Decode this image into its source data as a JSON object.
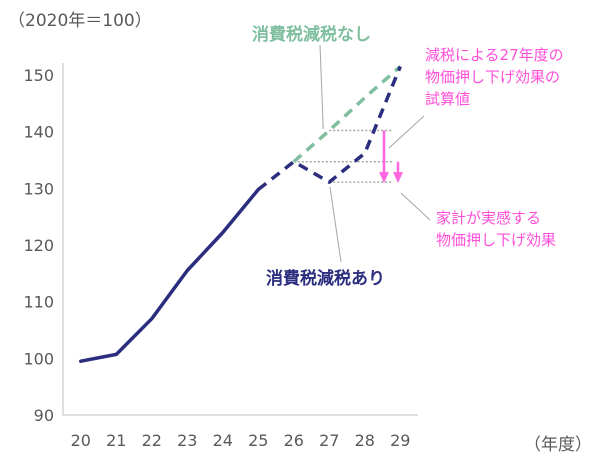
{
  "chart_data": {
    "type": "line",
    "y_unit_label": "（2020年＝100）",
    "x_unit_label": "（年度）",
    "x": [
      "20",
      "21",
      "22",
      "23",
      "24",
      "25",
      "26",
      "27",
      "28",
      "29"
    ],
    "ylim": [
      90,
      150
    ],
    "yticks": [
      "90",
      "100",
      "110",
      "120",
      "130",
      "140",
      "150"
    ],
    "series": [
      {
        "name": "消費税減税あり",
        "color": "#2b2d7e",
        "values": [
          99.5,
          100.7,
          107,
          115.5,
          122.2,
          129.8,
          134.7,
          131.1,
          136.2,
          151.5
        ],
        "dashed_from_index": 5
      },
      {
        "name": "消費税減税なし",
        "color": "#7fbf9f",
        "values": [
          null,
          null,
          null,
          null,
          null,
          null,
          134.7,
          140.2,
          146,
          151.5
        ],
        "dashed_from_index": 6
      }
    ],
    "annotations": {
      "no_cut_label": "消費税減税なし",
      "with_cut_label": "消費税減税あり",
      "cut_effect_label_line1": "減税による27年度の",
      "cut_effect_label_line2": "物価押し下げ効果の",
      "cut_effect_label_line3": "試算値",
      "household_label_line1": "家計が実感する",
      "household_label_line2": "物価押し下げ効果",
      "ref_lines": [
        140.2,
        134.7,
        131.1
      ]
    },
    "grid": false
  }
}
